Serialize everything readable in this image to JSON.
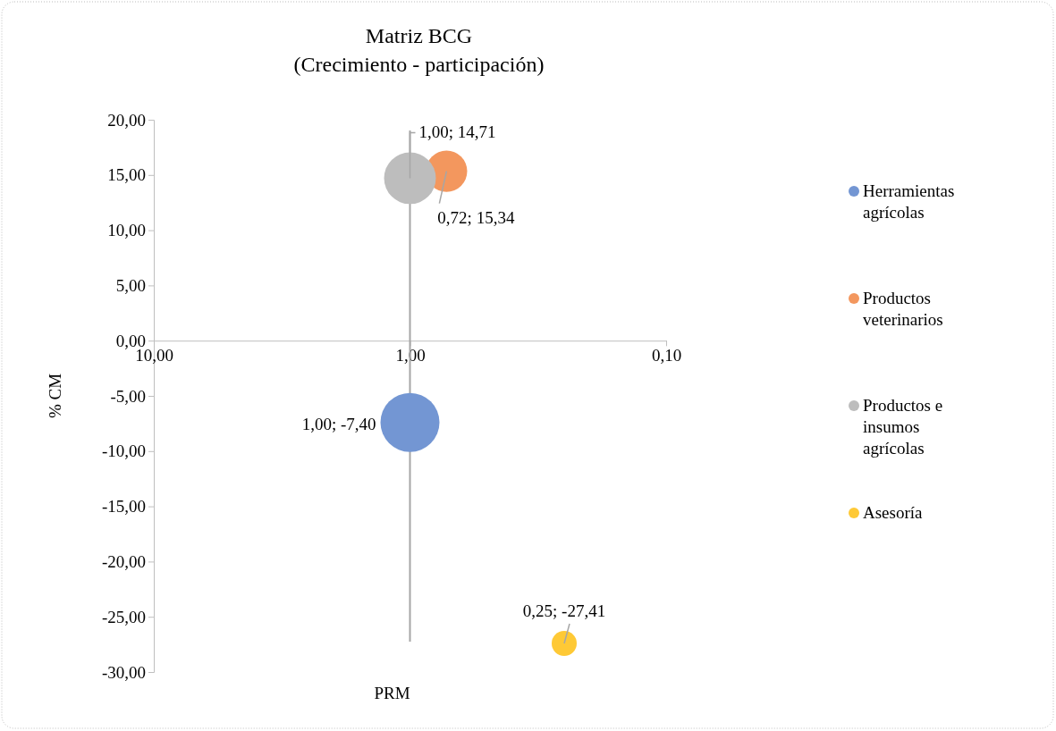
{
  "chart_data": {
    "type": "bubble",
    "title": "Matriz BCG",
    "subtitle": "(Crecimiento - participación)",
    "xlabel": "PRM",
    "ylabel": "% CM",
    "log": "x",
    "xlim": [
      10,
      0.1
    ],
    "xticks": [
      {
        "value": 10,
        "label": "10,00"
      },
      {
        "value": 1,
        "label": "1,00"
      },
      {
        "value": 0.1,
        "label": "0,10"
      }
    ],
    "ylim": [
      -30,
      20
    ],
    "yticks": [
      {
        "value": -30,
        "label": "-30,00"
      },
      {
        "value": -25,
        "label": "-25,00"
      },
      {
        "value": -20,
        "label": "-20,00"
      },
      {
        "value": -15,
        "label": "-15,00"
      },
      {
        "value": -10,
        "label": "-10,00"
      },
      {
        "value": -5,
        "label": "-5,00"
      },
      {
        "value": 0,
        "label": "0,00"
      },
      {
        "value": 5,
        "label": "5,00"
      },
      {
        "value": 10,
        "label": "10,00"
      },
      {
        "value": 15,
        "label": "15,00"
      },
      {
        "value": 20,
        "label": "20,00"
      }
    ],
    "ref_lines": [
      {
        "axis": "x",
        "value": 1,
        "color": "#a6a6a6"
      }
    ],
    "legend": "right",
    "marker": "circle",
    "series": [
      {
        "name": "Herramientas agrícolas",
        "color": "#7396d3",
        "x": [
          1
        ],
        "values": [
          -7.4
        ],
        "sizes": [
          1
        ],
        "value_labels": [
          "1,00; -7,40"
        ]
      },
      {
        "name": "Productos veterinarios",
        "color": "#f3975e",
        "x": [
          0.72
        ],
        "values": [
          15.34
        ],
        "sizes": [
          0.49
        ],
        "value_labels": [
          "0,72; 15,34"
        ]
      },
      {
        "name": "Productos e insumos agrícolas",
        "color": "#bdbdbd",
        "x": [
          1
        ],
        "values": [
          14.71
        ],
        "sizes": [
          0.77
        ],
        "value_labels": [
          "1,00; 14,71"
        ]
      },
      {
        "name": "Asesoría",
        "color": "#fec936",
        "x": [
          0.25
        ],
        "values": [
          -27.41
        ],
        "sizes": [
          0.18
        ],
        "value_labels": [
          "0,25; -27,41"
        ]
      }
    ]
  }
}
